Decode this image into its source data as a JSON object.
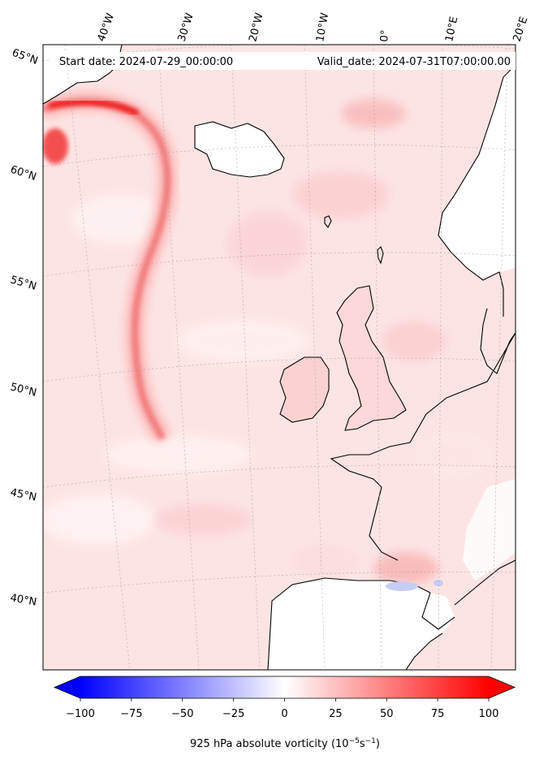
{
  "start_date_text": "Start date: 2024-07-29_00:00:00",
  "valid_date_text": "Valid_date: 2024-07-31T07:00:00.00",
  "longitude_labels": [
    "40°W",
    "30°W",
    "20°W",
    "10°W",
    "0°",
    "10°E",
    "20°E"
  ],
  "latitude_labels": [
    "65°N",
    "60°N",
    "55°N",
    "50°N",
    "45°N",
    "40°N"
  ],
  "colorbar": {
    "title_prefix": "925 hPa absolute vorticity (10",
    "title_exp1": "−5",
    "title_mid": "s",
    "title_exp2": "−1",
    "title_suffix": ")",
    "min": -100,
    "max": 100,
    "ticks": [
      "−100",
      "−75",
      "−50",
      "−25",
      "0",
      "25",
      "50",
      "75",
      "100"
    ],
    "colors": {
      "negative": "#0000ff",
      "zero": "#ffffff",
      "positive": "#ff0000"
    }
  },
  "colors": {
    "background_field": "#fde3e3",
    "land_high": "#ffffff",
    "coastline": "#000000",
    "gridline": "#9a9a9a"
  }
}
